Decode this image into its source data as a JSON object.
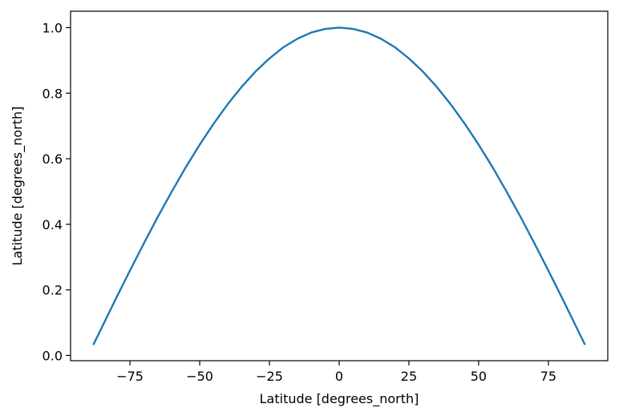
{
  "chart_data": {
    "type": "line",
    "title": "",
    "xlabel": "Latitude [degrees_north]",
    "ylabel": "Latitude [degrees_north]",
    "xlim": [
      -96.3,
      96.3
    ],
    "ylim": [
      -0.016,
      1.05
    ],
    "xticks": [
      -75,
      -50,
      -25,
      0,
      25,
      50,
      75
    ],
    "xtick_labels": [
      "−75",
      "−50",
      "−25",
      "0",
      "25",
      "50",
      "75"
    ],
    "yticks": [
      0.0,
      0.2,
      0.4,
      0.6,
      0.8,
      1.0
    ],
    "ytick_labels": [
      "0.0",
      "0.2",
      "0.4",
      "0.6",
      "0.8",
      "1.0"
    ],
    "grid": false,
    "series": [
      {
        "color": "#1f77b4",
        "x": [
          -88,
          -85,
          -80,
          -75,
          -70,
          -65,
          -60,
          -55,
          -50,
          -45,
          -40,
          -35,
          -30,
          -25,
          -20,
          -15,
          -10,
          -5,
          0,
          5,
          10,
          15,
          20,
          25,
          30,
          35,
          40,
          45,
          50,
          55,
          60,
          65,
          70,
          75,
          80,
          85,
          88
        ],
        "y": [
          0.035,
          0.087,
          0.174,
          0.259,
          0.342,
          0.423,
          0.5,
          0.574,
          0.643,
          0.707,
          0.766,
          0.819,
          0.866,
          0.906,
          0.94,
          0.966,
          0.985,
          0.996,
          1.0,
          0.996,
          0.985,
          0.966,
          0.94,
          0.906,
          0.866,
          0.819,
          0.766,
          0.707,
          0.643,
          0.574,
          0.5,
          0.423,
          0.342,
          0.259,
          0.174,
          0.087,
          0.035
        ]
      }
    ]
  }
}
